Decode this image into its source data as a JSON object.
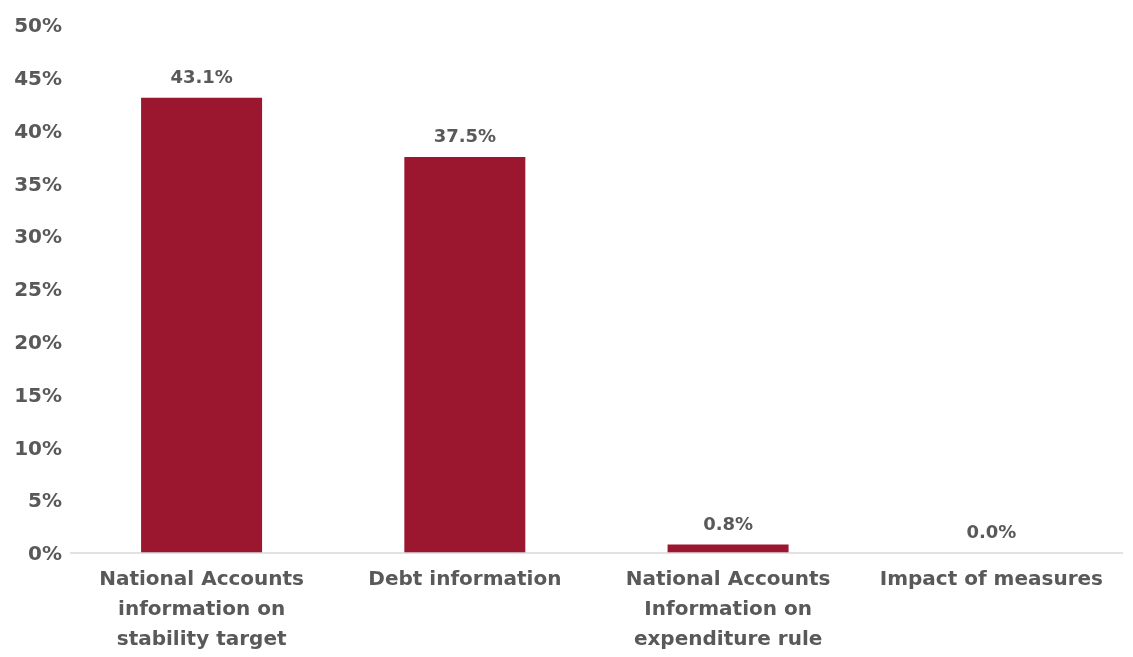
{
  "chart_data": {
    "type": "bar",
    "categories": [
      "National Accounts information on stability target",
      "Debt information",
      "National Accounts Information on expenditure rule",
      "Impact of measures"
    ],
    "values": [
      43.1,
      37.5,
      0.8,
      0.0
    ],
    "color": "#9b1730",
    "value_labels": [
      "43.1%",
      "37.5%",
      "0.8%",
      "0.0%"
    ],
    "ylim": [
      0,
      50
    ],
    "yticks": [
      {
        "value": 0,
        "label": "0%"
      },
      {
        "value": 5,
        "label": "5%"
      },
      {
        "value": 10,
        "label": "10%"
      },
      {
        "value": 15,
        "label": "15%"
      },
      {
        "value": 20,
        "label": "20%"
      },
      {
        "value": 25,
        "label": "25%"
      },
      {
        "value": 30,
        "label": "30%"
      },
      {
        "value": 35,
        "label": "35%"
      },
      {
        "value": 40,
        "label": "40%"
      },
      {
        "value": 45,
        "label": "45%"
      },
      {
        "value": 50,
        "label": "50%"
      }
    ],
    "grid": false,
    "legend": false
  }
}
